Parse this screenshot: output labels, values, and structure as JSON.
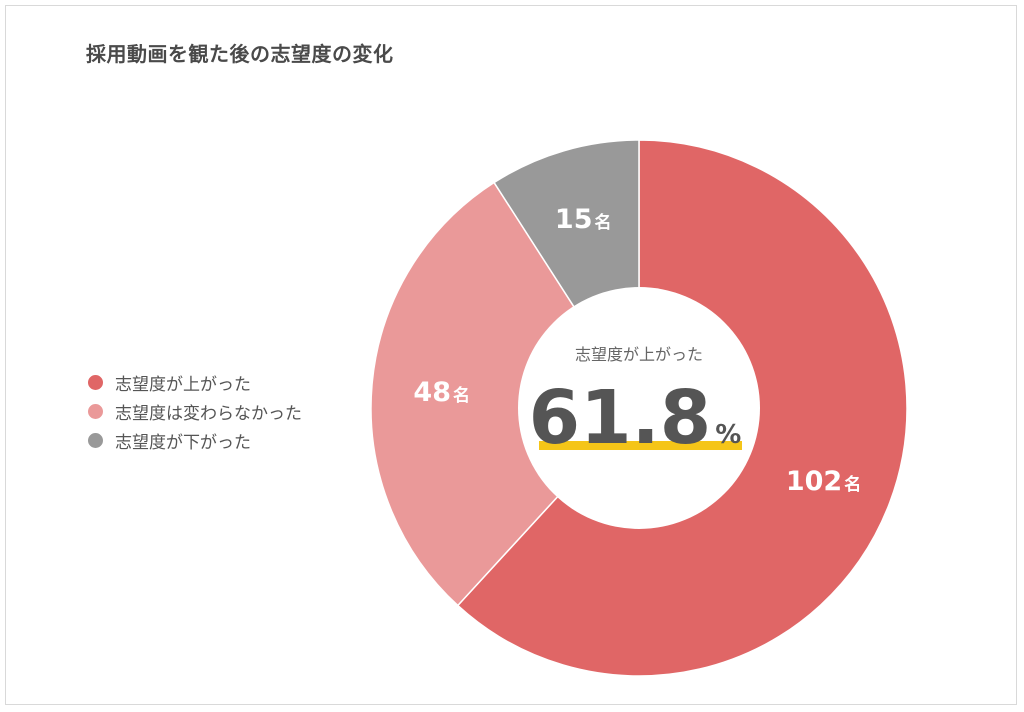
{
  "chart_data": {
    "type": "pie",
    "title": "採用動画を観た後の志望度の変化",
    "unit": "名",
    "categories": [
      "志望度が上がった",
      "志望度は変わらなかった",
      "志望度が下がった"
    ],
    "values": [
      102,
      48,
      15
    ],
    "colors": [
      "#e06666",
      "#ea9999",
      "#999999"
    ],
    "legend_position": "left",
    "center_caption": "志望度が上がった",
    "center_value": "61.8",
    "center_unit": "%",
    "highlight_color": "#f5c518"
  }
}
